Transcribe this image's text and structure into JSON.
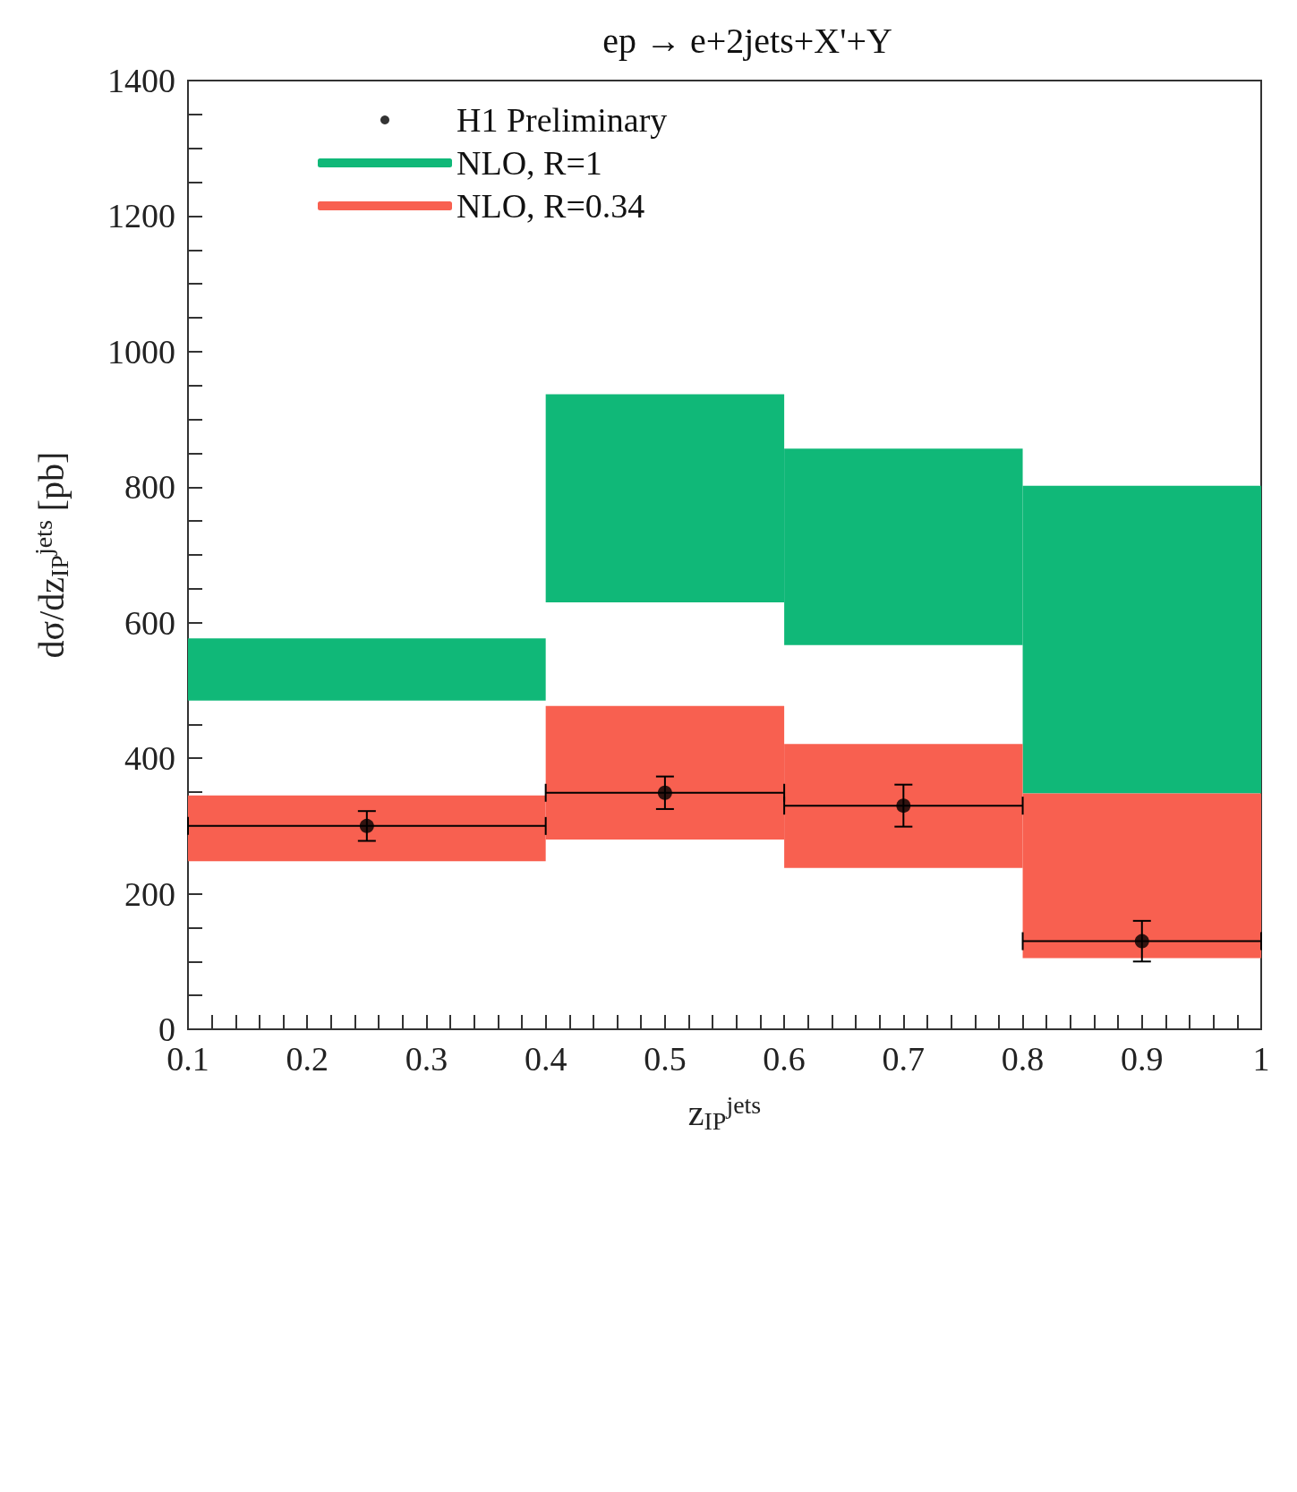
{
  "chart_data": {
    "type": "histogram",
    "title": "ep → e+2jets+X'+Y",
    "xlabel": "z$_{IP}$$^{jets}$",
    "ylabel": "dσ/dz$_{IP}$$^{jets}$ [pb]",
    "bins": [
      0.1,
      0.4,
      0.6,
      0.8,
      1.0
    ],
    "series": [
      {
        "type": "scatter",
        "name": "H1 Preliminary",
        "color": "#000000",
        "x": [
          0.25,
          0.5,
          0.7,
          0.9
        ],
        "values": [
          300,
          349,
          330,
          130
        ],
        "errors": [
          22,
          24,
          31,
          30
        ],
        "xerrors": [
          0.15,
          0.1,
          0.1,
          0.1
        ]
      },
      {
        "name": "NLO, R=1",
        "color": "#10b878",
        "base": [
          485,
          630,
          567,
          348
        ],
        "values": [
          92,
          307,
          290,
          454
        ]
      },
      {
        "name": "NLO, R=0.34",
        "color": "#f86050",
        "base": [
          248,
          280,
          238,
          105
        ],
        "values": [
          97,
          197,
          183,
          243
        ]
      }
    ],
    "xlim": [
      0.1,
      1.0
    ],
    "xticks": [
      0.1,
      {
        "value": 0.12,
        "label": null
      },
      {
        "value": 0.14,
        "label": null
      },
      {
        "value": 0.16,
        "label": null
      },
      {
        "value": 0.18,
        "label": null
      },
      0.2,
      {
        "value": 0.22,
        "label": null
      },
      {
        "value": 0.24,
        "label": null
      },
      {
        "value": 0.26,
        "label": null
      },
      {
        "value": 0.28,
        "label": null
      },
      0.3,
      {
        "value": 0.32,
        "label": null
      },
      {
        "value": 0.34,
        "label": null
      },
      {
        "value": 0.36,
        "label": null
      },
      {
        "value": 0.38,
        "label": null
      },
      0.4,
      {
        "value": 0.42,
        "label": null
      },
      {
        "value": 0.44,
        "label": null
      },
      {
        "value": 0.46,
        "label": null
      },
      {
        "value": 0.48,
        "label": null
      },
      0.5,
      {
        "value": 0.52,
        "label": null
      },
      {
        "value": 0.54,
        "label": null
      },
      {
        "value": 0.56,
        "label": null
      },
      {
        "value": 0.58,
        "label": null
      },
      0.6,
      {
        "value": 0.62,
        "label": null
      },
      {
        "value": 0.64,
        "label": null
      },
      {
        "value": 0.66,
        "label": null
      },
      {
        "value": 0.68,
        "label": null
      },
      0.7,
      {
        "value": 0.72,
        "label": null
      },
      {
        "value": 0.74,
        "label": null
      },
      {
        "value": 0.76,
        "label": null
      },
      {
        "value": 0.78,
        "label": null
      },
      0.8,
      {
        "value": 0.82,
        "label": null
      },
      {
        "value": 0.84,
        "label": null
      },
      {
        "value": 0.86,
        "label": null
      },
      {
        "value": 0.88,
        "label": null
      },
      0.9,
      {
        "value": 0.92,
        "label": null
      },
      {
        "value": 0.94,
        "label": null
      },
      {
        "value": 0.96,
        "label": null
      },
      {
        "value": 0.98,
        "label": null
      },
      1
    ],
    "ylim": [
      0,
      1400
    ],
    "yticks": [
      0,
      {
        "value": 50,
        "label": null
      },
      {
        "value": 100,
        "label": null
      },
      {
        "value": 150,
        "label": null
      },
      200,
      {
        "value": 250,
        "label": null
      },
      {
        "value": 300,
        "label": null
      },
      {
        "value": 350,
        "label": null
      },
      400,
      {
        "value": 450,
        "label": null
      },
      {
        "value": 500,
        "label": null
      },
      {
        "value": 550,
        "label": null
      },
      600,
      {
        "value": 650,
        "label": null
      },
      {
        "value": 700,
        "label": null
      },
      {
        "value": 750,
        "label": null
      },
      800,
      {
        "value": 850,
        "label": null
      },
      {
        "value": 900,
        "label": null
      },
      {
        "value": 950,
        "label": null
      },
      1000,
      {
        "value": 1050,
        "label": null
      },
      {
        "value": 1100,
        "label": null
      },
      {
        "value": 1150,
        "label": null
      },
      1200,
      {
        "value": 1250,
        "label": null
      },
      {
        "value": 1300,
        "label": null
      },
      {
        "value": 1350,
        "label": null
      },
      1400
    ],
    "legend": "top left",
    "marker": "circle",
    "grid": false
  }
}
